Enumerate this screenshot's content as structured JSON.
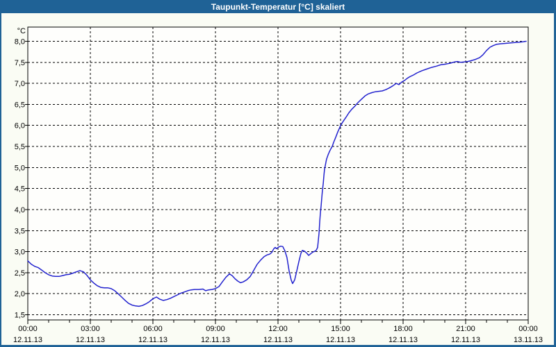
{
  "window": {
    "title": "Taupunkt-Temperatur [°C] skaliert"
  },
  "colors": {
    "titlebar": "#1F6296",
    "window_border": "#1F6296",
    "content_bg": "#FAFCF4",
    "plot_bg": "#FEFEFC",
    "line": "#2121CE",
    "grid": "#000000",
    "axis": "#000000",
    "text": "#000000",
    "title_text": "#FFFFFF"
  },
  "chart_data": {
    "type": "line",
    "title": "Taupunkt-Temperatur [°C] skaliert",
    "xlabel": "",
    "ylabel": "°C",
    "legend": "none",
    "grid": {
      "style": "dashed",
      "color": "#000000"
    },
    "x_axis": {
      "unit": "hours",
      "range_hours": [
        0,
        24
      ],
      "minor_tick_interval_hours": 1,
      "major_tick_interval_hours": 3,
      "major_ticks": [
        {
          "t": 0,
          "time": "00:00",
          "date": "12.11.13"
        },
        {
          "t": 3,
          "time": "03:00",
          "date": "12.11.13"
        },
        {
          "t": 6,
          "time": "06:00",
          "date": "12.11.13"
        },
        {
          "t": 9,
          "time": "09:00",
          "date": "12.11.13"
        },
        {
          "t": 12,
          "time": "12:00",
          "date": "12.11.13"
        },
        {
          "t": 15,
          "time": "15:00",
          "date": "12.11.13"
        },
        {
          "t": 18,
          "time": "18:00",
          "date": "12.11.13"
        },
        {
          "t": 21,
          "time": "21:00",
          "date": "12.11.13"
        },
        {
          "t": 24,
          "time": "00:00",
          "date": "13.11.13"
        }
      ]
    },
    "y_axis": {
      "label": "°C",
      "min": 1.5,
      "max": 8.0,
      "step": 0.5,
      "ticks": [
        {
          "value": 8.0,
          "label": "8,0"
        },
        {
          "value": 7.5,
          "label": "7,5"
        },
        {
          "value": 7.0,
          "label": "7,0"
        },
        {
          "value": 6.5,
          "label": "6,5"
        },
        {
          "value": 6.0,
          "label": "6,0"
        },
        {
          "value": 5.5,
          "label": "5,5"
        },
        {
          "value": 5.0,
          "label": "5,0"
        },
        {
          "value": 4.5,
          "label": "4,5"
        },
        {
          "value": 4.0,
          "label": "4,0"
        },
        {
          "value": 3.5,
          "label": "3,5"
        },
        {
          "value": 3.0,
          "label": "3,0"
        },
        {
          "value": 2.5,
          "label": "2,5"
        },
        {
          "value": 2.0,
          "label": "2,0"
        },
        {
          "value": 1.5,
          "label": "1,5"
        }
      ]
    },
    "series": [
      {
        "name": "Taupunkt-Temperatur",
        "color": "#2121CE",
        "points_t_hours_value_c": [
          [
            0.0,
            2.78
          ],
          [
            0.17,
            2.7
          ],
          [
            0.33,
            2.65
          ],
          [
            0.5,
            2.62
          ],
          [
            0.67,
            2.56
          ],
          [
            0.83,
            2.5
          ],
          [
            1.0,
            2.45
          ],
          [
            1.17,
            2.42
          ],
          [
            1.33,
            2.41
          ],
          [
            1.5,
            2.41
          ],
          [
            1.67,
            2.43
          ],
          [
            1.83,
            2.45
          ],
          [
            2.0,
            2.46
          ],
          [
            2.17,
            2.49
          ],
          [
            2.33,
            2.52
          ],
          [
            2.5,
            2.55
          ],
          [
            2.67,
            2.52
          ],
          [
            2.83,
            2.44
          ],
          [
            3.0,
            2.33
          ],
          [
            3.17,
            2.25
          ],
          [
            3.33,
            2.19
          ],
          [
            3.5,
            2.15
          ],
          [
            3.67,
            2.14
          ],
          [
            3.83,
            2.14
          ],
          [
            4.0,
            2.12
          ],
          [
            4.17,
            2.07
          ],
          [
            4.33,
            2.0
          ],
          [
            4.5,
            1.92
          ],
          [
            4.67,
            1.84
          ],
          [
            4.83,
            1.77
          ],
          [
            5.0,
            1.73
          ],
          [
            5.17,
            1.71
          ],
          [
            5.33,
            1.7
          ],
          [
            5.5,
            1.72
          ],
          [
            5.67,
            1.76
          ],
          [
            5.83,
            1.81
          ],
          [
            6.0,
            1.88
          ],
          [
            6.17,
            1.92
          ],
          [
            6.33,
            1.87
          ],
          [
            6.5,
            1.84
          ],
          [
            6.67,
            1.86
          ],
          [
            6.83,
            1.89
          ],
          [
            7.0,
            1.93
          ],
          [
            7.17,
            1.97
          ],
          [
            7.33,
            2.01
          ],
          [
            7.5,
            2.04
          ],
          [
            7.67,
            2.07
          ],
          [
            7.83,
            2.09
          ],
          [
            8.0,
            2.1
          ],
          [
            8.2,
            2.1
          ],
          [
            8.4,
            2.11
          ],
          [
            8.53,
            2.07
          ],
          [
            8.67,
            2.09
          ],
          [
            8.83,
            2.1
          ],
          [
            9.0,
            2.12
          ],
          [
            9.17,
            2.17
          ],
          [
            9.33,
            2.28
          ],
          [
            9.5,
            2.39
          ],
          [
            9.67,
            2.47
          ],
          [
            9.8,
            2.43
          ],
          [
            9.93,
            2.36
          ],
          [
            10.07,
            2.3
          ],
          [
            10.2,
            2.26
          ],
          [
            10.33,
            2.28
          ],
          [
            10.5,
            2.33
          ],
          [
            10.67,
            2.41
          ],
          [
            10.83,
            2.55
          ],
          [
            11.0,
            2.7
          ],
          [
            11.17,
            2.8
          ],
          [
            11.33,
            2.88
          ],
          [
            11.47,
            2.92
          ],
          [
            11.6,
            2.94
          ],
          [
            11.7,
            2.98
          ],
          [
            11.8,
            3.07
          ],
          [
            11.87,
            3.1
          ],
          [
            11.93,
            3.07
          ],
          [
            12.03,
            3.11
          ],
          [
            12.13,
            3.13
          ],
          [
            12.23,
            3.12
          ],
          [
            12.33,
            3.02
          ],
          [
            12.43,
            2.86
          ],
          [
            12.53,
            2.55
          ],
          [
            12.63,
            2.33
          ],
          [
            12.7,
            2.24
          ],
          [
            12.8,
            2.33
          ],
          [
            12.9,
            2.54
          ],
          [
            13.0,
            2.76
          ],
          [
            13.1,
            2.96
          ],
          [
            13.17,
            3.03
          ],
          [
            13.27,
            3.01
          ],
          [
            13.37,
            2.97
          ],
          [
            13.47,
            2.91
          ],
          [
            13.57,
            2.95
          ],
          [
            13.67,
            2.99
          ],
          [
            13.77,
            3.01
          ],
          [
            13.83,
            3.03
          ],
          [
            13.9,
            3.1
          ],
          [
            13.93,
            3.25
          ],
          [
            13.97,
            3.45
          ],
          [
            14.0,
            3.7
          ],
          [
            14.03,
            3.9
          ],
          [
            14.07,
            4.1
          ],
          [
            14.1,
            4.28
          ],
          [
            14.13,
            4.45
          ],
          [
            14.17,
            4.62
          ],
          [
            14.2,
            4.8
          ],
          [
            14.23,
            4.95
          ],
          [
            14.27,
            5.05
          ],
          [
            14.3,
            5.13
          ],
          [
            14.33,
            5.2
          ],
          [
            14.4,
            5.3
          ],
          [
            14.47,
            5.38
          ],
          [
            14.53,
            5.44
          ],
          [
            14.6,
            5.5
          ],
          [
            14.67,
            5.6
          ],
          [
            14.77,
            5.72
          ],
          [
            14.87,
            5.85
          ],
          [
            14.97,
            5.96
          ],
          [
            15.0,
            6.0
          ],
          [
            15.13,
            6.1
          ],
          [
            15.27,
            6.2
          ],
          [
            15.4,
            6.3
          ],
          [
            15.53,
            6.38
          ],
          [
            15.67,
            6.45
          ],
          [
            15.83,
            6.54
          ],
          [
            16.0,
            6.62
          ],
          [
            16.17,
            6.7
          ],
          [
            16.33,
            6.75
          ],
          [
            16.5,
            6.78
          ],
          [
            16.67,
            6.8
          ],
          [
            16.83,
            6.81
          ],
          [
            17.0,
            6.82
          ],
          [
            17.17,
            6.85
          ],
          [
            17.33,
            6.89
          ],
          [
            17.5,
            6.94
          ],
          [
            17.67,
            7.0
          ],
          [
            17.8,
            6.97
          ],
          [
            17.93,
            7.03
          ],
          [
            18.07,
            7.07
          ],
          [
            18.2,
            7.12
          ],
          [
            18.33,
            7.16
          ],
          [
            18.5,
            7.2
          ],
          [
            18.67,
            7.25
          ],
          [
            18.9,
            7.3
          ],
          [
            19.13,
            7.34
          ],
          [
            19.37,
            7.38
          ],
          [
            19.6,
            7.41
          ],
          [
            19.8,
            7.44
          ],
          [
            20.07,
            7.46
          ],
          [
            20.27,
            7.48
          ],
          [
            20.47,
            7.51
          ],
          [
            20.6,
            7.52
          ],
          [
            20.77,
            7.5
          ],
          [
            20.93,
            7.51
          ],
          [
            21.1,
            7.52
          ],
          [
            21.27,
            7.54
          ],
          [
            21.47,
            7.57
          ],
          [
            21.67,
            7.61
          ],
          [
            21.83,
            7.68
          ],
          [
            22.0,
            7.78
          ],
          [
            22.17,
            7.86
          ],
          [
            22.33,
            7.9
          ],
          [
            22.5,
            7.93
          ],
          [
            22.67,
            7.94
          ],
          [
            22.9,
            7.95
          ],
          [
            23.13,
            7.96
          ],
          [
            23.37,
            7.97
          ],
          [
            23.6,
            7.98
          ],
          [
            23.77,
            7.99
          ],
          [
            23.9,
            8.0
          ]
        ]
      }
    ]
  }
}
